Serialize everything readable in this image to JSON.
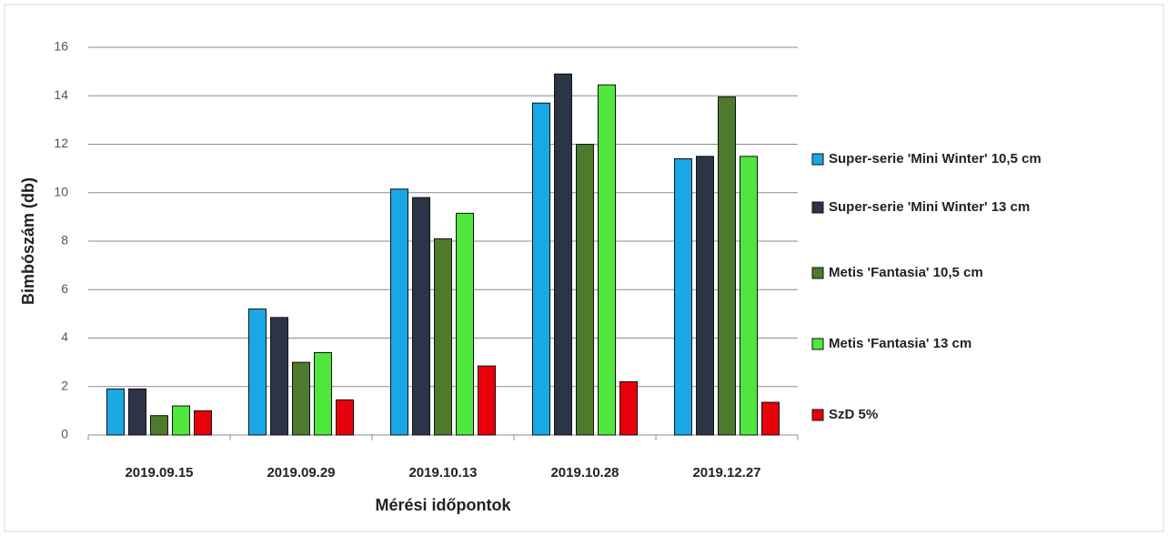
{
  "chart_data": {
    "type": "bar",
    "x_label": "Mérési időpontok",
    "y_label": "Bimbószám (db)",
    "categories": [
      "2019.09.15",
      "2019.09.29",
      "2019.10.13",
      "2019.10.28",
      "2019.12.27"
    ],
    "series": [
      {
        "name": "Super-serie 'Mini Winter' 10,5 cm",
        "color": "#1aa7e6",
        "values": [
          1.9,
          5.2,
          10.15,
          13.7,
          11.4
        ]
      },
      {
        "name": "Super-serie 'Mini Winter' 13 cm",
        "color": "#2b3547",
        "values": [
          1.9,
          4.85,
          9.8,
          14.9,
          11.5
        ]
      },
      {
        "name": "Metis 'Fantasia' 10,5 cm",
        "color": "#4e7a2c",
        "values": [
          0.8,
          3.0,
          8.1,
          12.0,
          13.95
        ]
      },
      {
        "name": "Metis 'Fantasia' 13 cm",
        "color": "#4fe63d",
        "values": [
          1.2,
          3.4,
          9.15,
          14.45,
          11.5
        ]
      },
      {
        "name": "SzD 5%",
        "color": "#e8000b",
        "values": [
          1.0,
          1.45,
          2.85,
          2.2,
          1.35
        ]
      }
    ],
    "ylim": [
      0,
      16
    ],
    "yticks": [
      0,
      2,
      4,
      6,
      8,
      10,
      12,
      14,
      16
    ],
    "grid": true,
    "legend": "right"
  }
}
